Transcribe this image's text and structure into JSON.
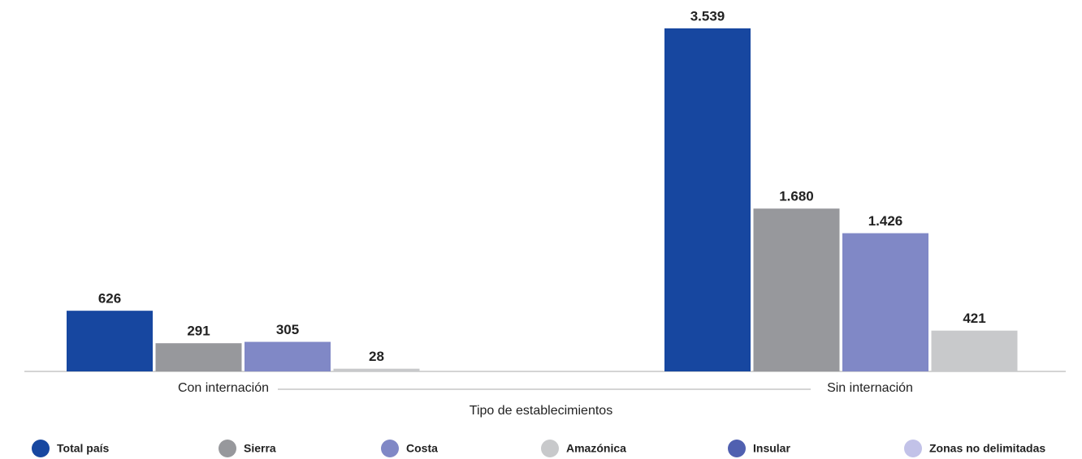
{
  "chart_data": {
    "type": "bar",
    "x_label": "Tipo de establecimientos",
    "categories": [
      "Con internación",
      "Sin internación"
    ],
    "series": [
      {
        "name": "Total país",
        "color": "#1747a0",
        "values": [
          626,
          3539
        ],
        "value_labels": [
          "626",
          "3.539"
        ]
      },
      {
        "name": "Sierra",
        "color": "#97989c",
        "values": [
          291,
          1680
        ],
        "value_labels": [
          "291",
          "1.680"
        ]
      },
      {
        "name": "Costa",
        "color": "#8088c6",
        "values": [
          305,
          1426
        ],
        "value_labels": [
          "305",
          "1.426"
        ]
      },
      {
        "name": "Amazónica",
        "color": "#c8c9cb",
        "values": [
          28,
          421
        ],
        "value_labels": [
          "28",
          "421"
        ]
      },
      {
        "name": "Insular",
        "color": "#5060b0",
        "values": [
          null,
          null
        ]
      },
      {
        "name": "Zonas no delimitadas",
        "color": "#c2c2e8",
        "values": [
          null,
          null
        ]
      }
    ],
    "legend": "bottom"
  }
}
